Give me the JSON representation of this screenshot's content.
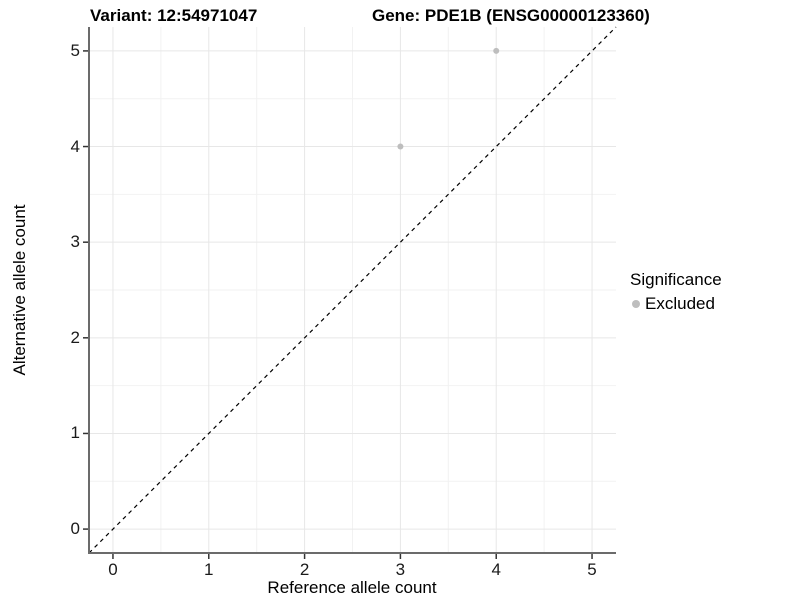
{
  "titles": {
    "variant": "Variant: 12:54971047",
    "gene": "Gene: PDE1B (ENSG00000123360)"
  },
  "chart_data": {
    "type": "scatter",
    "title_left": "Variant: 12:54971047",
    "title_right": "Gene: PDE1B (ENSG00000123360)",
    "xlabel": "Reference allele count",
    "ylabel": "Alternative allele count",
    "xlim": [
      -0.25,
      5.25
    ],
    "ylim": [
      -0.25,
      5.25
    ],
    "x_ticks": [
      0,
      1,
      2,
      3,
      4,
      5
    ],
    "y_ticks": [
      0,
      1,
      2,
      3,
      4,
      5
    ],
    "x_minor_ticks": [
      0.5,
      1.5,
      2.5,
      3.5,
      4.5
    ],
    "y_minor_ticks": [
      0.5,
      1.5,
      2.5,
      3.5,
      4.5
    ],
    "grid": "major+minor",
    "identity_line": {
      "style": "dashed",
      "color": "#000000",
      "from": [
        -0.25,
        -0.25
      ],
      "to": [
        5.25,
        5.25
      ]
    },
    "series": [
      {
        "name": "Excluded",
        "color": "#bebebe",
        "point_radius": 3,
        "points": [
          {
            "x": 3,
            "y": 4
          },
          {
            "x": 4,
            "y": 5
          }
        ]
      }
    ],
    "legend": {
      "title": "Significance",
      "position": "right"
    },
    "style": {
      "grid_major_color": "#e7e7e7",
      "grid_minor_color": "#f2f2f2",
      "axis_line_color": "#6b6b6b",
      "tick_mark_color": "#333333",
      "background": "#ffffff"
    }
  }
}
